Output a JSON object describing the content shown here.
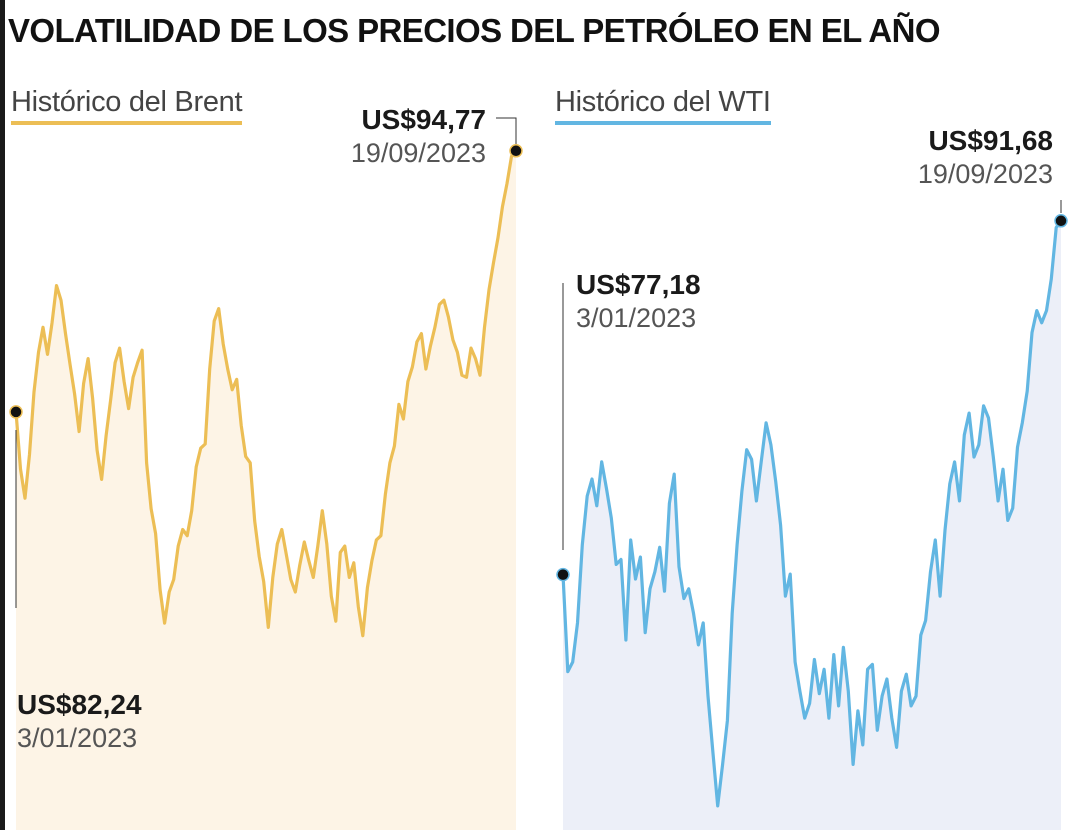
{
  "title": "VOLATILIDAD DE LOS PRECIOS DEL PETRÓLEO EN EL AÑO",
  "chart_data": [
    {
      "type": "area",
      "legend": "Histórico del Brent",
      "color": "#ecbe55",
      "fill": "#fdf4e6",
      "series": [
        {
          "values": [
            82.24,
            79.5,
            78.1,
            80.2,
            83.2,
            85.1,
            86.3,
            85.0,
            86.5,
            88.3,
            87.6,
            86.0,
            84.5,
            83.1,
            81.3,
            83.6,
            84.8,
            82.9,
            80.4,
            79.0,
            81.1,
            82.8,
            84.6,
            85.3,
            83.7,
            82.4,
            83.9,
            84.6,
            85.2,
            79.8,
            77.6,
            76.4,
            73.7,
            72.1,
            73.6,
            74.2,
            75.8,
            76.6,
            76.3,
            77.5,
            79.6,
            80.5,
            80.7,
            84.3,
            86.6,
            87.2,
            85.5,
            84.3,
            83.3,
            83.8,
            81.6,
            80.1,
            79.8,
            77.0,
            75.3,
            74.1,
            71.9,
            74.3,
            75.9,
            76.6,
            75.4,
            74.2,
            73.6,
            74.9,
            76.0,
            75.1,
            74.3,
            75.8,
            77.5,
            75.9,
            73.4,
            72.2,
            75.5,
            75.8,
            74.3,
            75.0,
            72.9,
            71.5,
            73.8,
            75.1,
            76.1,
            76.3,
            78.3,
            79.8,
            80.6,
            82.6,
            81.9,
            83.7,
            84.4,
            85.6,
            86.0,
            84.3,
            85.4,
            86.3,
            87.4,
            87.6,
            86.8,
            85.7,
            85.1,
            84.0,
            83.9,
            85.3,
            84.8,
            84.0,
            86.3,
            88.1,
            89.4,
            90.6,
            92.1,
            93.2,
            94.5,
            94.77
          ]
        }
      ],
      "start": {
        "value": "US$82,24",
        "date": "3/01/2023"
      },
      "end": {
        "value": "US$94,77",
        "date": "19/09/2023"
      },
      "ylim": [
        70,
        95
      ]
    },
    {
      "type": "area",
      "legend": "Histórico del WTI",
      "color": "#62b6e2",
      "fill": "#eceff8",
      "series": [
        {
          "values": [
            77.18,
            73.2,
            73.6,
            75.2,
            78.4,
            80.4,
            81.1,
            80.0,
            81.8,
            80.7,
            79.5,
            77.6,
            77.8,
            74.5,
            78.6,
            77.0,
            77.9,
            74.8,
            76.6,
            77.3,
            78.3,
            76.5,
            80.1,
            81.3,
            77.5,
            76.2,
            76.6,
            75.6,
            74.3,
            75.2,
            72.2,
            69.9,
            67.7,
            69.4,
            71.2,
            75.6,
            78.4,
            80.6,
            82.3,
            81.9,
            80.2,
            81.8,
            83.4,
            82.5,
            81.0,
            79.2,
            76.3,
            77.2,
            73.6,
            72.4,
            71.3,
            71.9,
            73.7,
            72.3,
            73.3,
            71.3,
            73.9,
            71.8,
            74.2,
            72.4,
            69.4,
            71.6,
            70.2,
            73.3,
            73.5,
            70.8,
            72.2,
            72.9,
            71.3,
            70.1,
            72.4,
            73.1,
            71.8,
            72.2,
            74.7,
            75.3,
            77.3,
            78.6,
            76.3,
            79.0,
            80.9,
            81.8,
            80.2,
            82.9,
            83.8,
            82.0,
            82.5,
            84.1,
            83.6,
            82.0,
            80.2,
            81.5,
            79.4,
            79.9,
            82.4,
            83.4,
            84.7,
            87.1,
            88.0,
            87.5,
            88.0,
            89.3,
            91.4,
            91.68
          ]
        }
      ],
      "start": {
        "value": "US$77,18",
        "date": "3/01/2023"
      },
      "end": {
        "value": "US$91,68",
        "date": "19/09/2023"
      },
      "ylim": [
        67,
        92
      ]
    }
  ]
}
